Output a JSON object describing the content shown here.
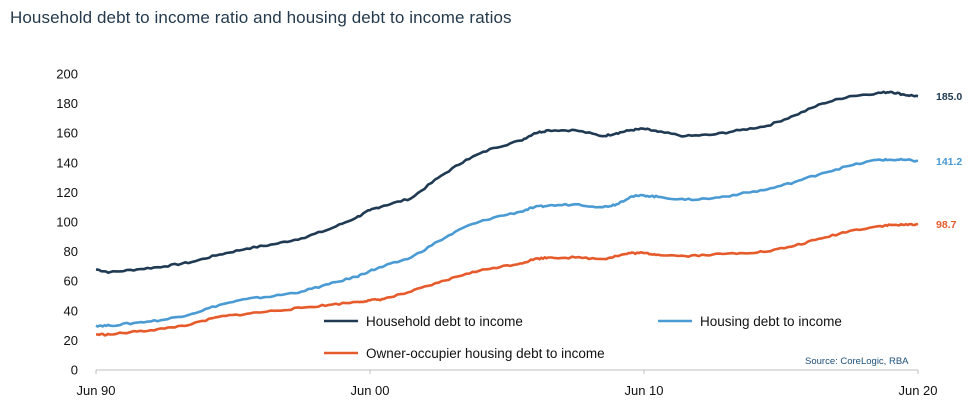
{
  "chart_data": {
    "type": "line",
    "title": "Household debt to  income ratio and housing debt to  income ratios",
    "xlabel": "",
    "ylabel": "",
    "ylim": [
      0,
      200
    ],
    "yticks": [
      0,
      20,
      40,
      60,
      80,
      100,
      120,
      140,
      160,
      180,
      200
    ],
    "xlim": [
      1990.5,
      2020.5
    ],
    "xticks": [
      {
        "x": 1990.5,
        "label": "Jun 90"
      },
      {
        "x": 2000.5,
        "label": "Jun 00"
      },
      {
        "x": 2010.5,
        "label": "Jun 10"
      },
      {
        "x": 2020.5,
        "label": "Jun 20"
      }
    ],
    "grid": false,
    "legend_position": "bottom-right-inside",
    "source": "Source:  CoreLogic, RBA",
    "series": [
      {
        "name": "Household debt to income",
        "color": "#1f3a52",
        "end_label": "185.0",
        "points": [
          [
            1990.5,
            68
          ],
          [
            1991,
            66
          ],
          [
            1992,
            68
          ],
          [
            1993,
            70
          ],
          [
            1994,
            73
          ],
          [
            1995,
            78
          ],
          [
            1996,
            82
          ],
          [
            1997,
            85
          ],
          [
            1998,
            89
          ],
          [
            1999,
            95
          ],
          [
            2000,
            103
          ],
          [
            2000.5,
            108
          ],
          [
            2001,
            111
          ],
          [
            2002,
            116
          ],
          [
            2003,
            130
          ],
          [
            2004,
            142
          ],
          [
            2005,
            150
          ],
          [
            2006,
            155
          ],
          [
            2006.5,
            160
          ],
          [
            2007,
            162
          ],
          [
            2008,
            162
          ],
          [
            2009,
            158
          ],
          [
            2009.5,
            160
          ],
          [
            2010,
            162
          ],
          [
            2010.5,
            163
          ],
          [
            2011,
            161
          ],
          [
            2012,
            158
          ],
          [
            2013,
            159
          ],
          [
            2014,
            162
          ],
          [
            2015,
            165
          ],
          [
            2016,
            172
          ],
          [
            2017,
            180
          ],
          [
            2018,
            185
          ],
          [
            2019,
            187
          ],
          [
            2019.5,
            188
          ],
          [
            2020,
            186
          ],
          [
            2020.5,
            185
          ]
        ]
      },
      {
        "name": "Housing debt to income",
        "color": "#4a9ad4",
        "end_label": "141.2",
        "points": [
          [
            1990.5,
            30
          ],
          [
            1991,
            30
          ],
          [
            1992,
            32
          ],
          [
            1993,
            34
          ],
          [
            1994,
            38
          ],
          [
            1995,
            44
          ],
          [
            1996,
            48
          ],
          [
            1997,
            50
          ],
          [
            1998,
            53
          ],
          [
            1999,
            58
          ],
          [
            2000,
            63
          ],
          [
            2000.5,
            67
          ],
          [
            2001,
            70
          ],
          [
            2002,
            76
          ],
          [
            2003,
            87
          ],
          [
            2004,
            97
          ],
          [
            2005,
            103
          ],
          [
            2006,
            107
          ],
          [
            2006.5,
            110
          ],
          [
            2007,
            111
          ],
          [
            2008,
            112
          ],
          [
            2009,
            110
          ],
          [
            2009.5,
            112
          ],
          [
            2010,
            117
          ],
          [
            2010.5,
            118
          ],
          [
            2011,
            117
          ],
          [
            2012,
            115
          ],
          [
            2013,
            116
          ],
          [
            2014,
            119
          ],
          [
            2015,
            122
          ],
          [
            2016,
            127
          ],
          [
            2017,
            133
          ],
          [
            2018,
            138
          ],
          [
            2019,
            142
          ],
          [
            2019.5,
            142
          ],
          [
            2020,
            142
          ],
          [
            2020.5,
            141.2
          ]
        ]
      },
      {
        "name": "Owner-occupier housing debt to income",
        "color": "#e55b2c",
        "end_label": "98.7",
        "points": [
          [
            1990.5,
            24
          ],
          [
            1991,
            24
          ],
          [
            1992,
            26
          ],
          [
            1993,
            28
          ],
          [
            1994,
            31
          ],
          [
            1995,
            36
          ],
          [
            1996,
            38
          ],
          [
            1997,
            40
          ],
          [
            1998,
            42
          ],
          [
            1999,
            44
          ],
          [
            2000,
            46
          ],
          [
            2000.5,
            47
          ],
          [
            2001,
            48
          ],
          [
            2002,
            53
          ],
          [
            2003,
            59
          ],
          [
            2004,
            65
          ],
          [
            2005,
            69
          ],
          [
            2006,
            72
          ],
          [
            2006.5,
            75
          ],
          [
            2007,
            76
          ],
          [
            2008,
            76
          ],
          [
            2009,
            75
          ],
          [
            2009.5,
            77
          ],
          [
            2010,
            79
          ],
          [
            2010.5,
            79
          ],
          [
            2011,
            78
          ],
          [
            2012,
            77
          ],
          [
            2013,
            78
          ],
          [
            2014,
            79
          ],
          [
            2015,
            80
          ],
          [
            2016,
            84
          ],
          [
            2017,
            89
          ],
          [
            2018,
            94
          ],
          [
            2019,
            97
          ],
          [
            2019.5,
            98
          ],
          [
            2020,
            98
          ],
          [
            2020.5,
            98.7
          ]
        ]
      }
    ]
  }
}
